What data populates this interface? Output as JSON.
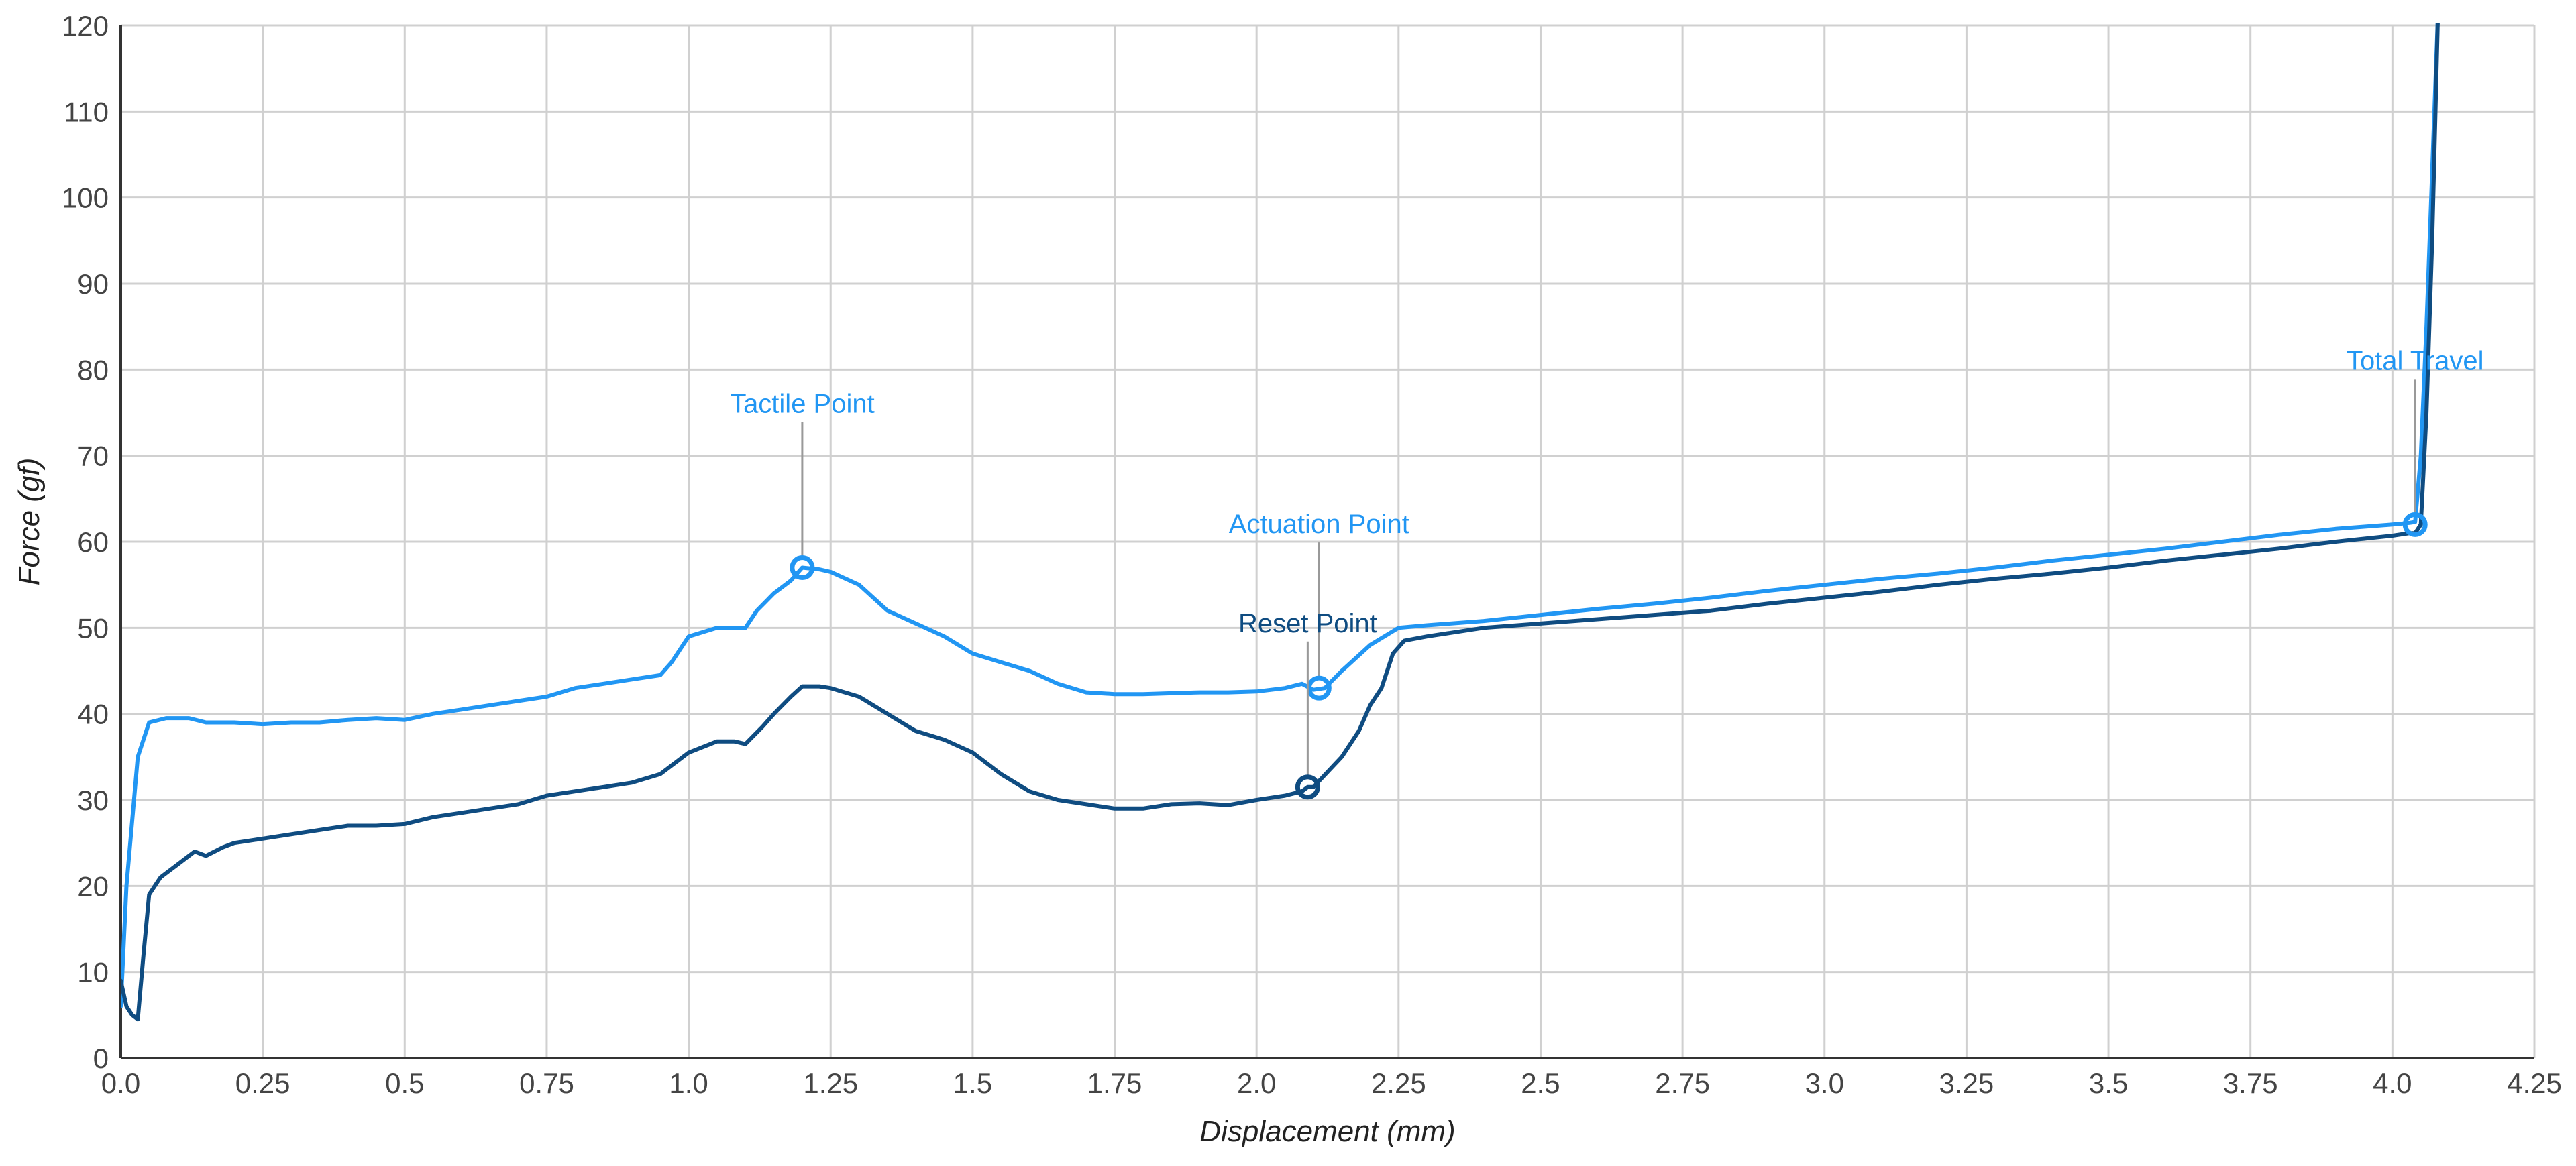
{
  "chart_data": {
    "type": "line",
    "title": "",
    "xlabel": "Displacement (mm)",
    "ylabel": "Force (gf)",
    "xlim": [
      0,
      4.25
    ],
    "ylim": [
      0,
      120
    ],
    "x_ticks": [
      "0.0",
      "0.25",
      "0.5",
      "0.75",
      "1.0",
      "1.25",
      "1.5",
      "1.75",
      "2.0",
      "2.25",
      "2.5",
      "2.75",
      "3.0",
      "3.25",
      "3.5",
      "3.75",
      "4.0",
      "4.25"
    ],
    "y_ticks": [
      "0",
      "10",
      "20",
      "30",
      "40",
      "50",
      "60",
      "70",
      "80",
      "90",
      "100",
      "110",
      "120"
    ],
    "grid": true,
    "legend": "none",
    "colors": {
      "downstroke": "#2196f3",
      "upstroke": "#0f4c81",
      "grid": "#d0d0d0",
      "axis": "#333333",
      "leader": "#999999"
    },
    "series": [
      {
        "color": "#2196f3",
        "x": [
          0.0,
          0.01,
          0.03,
          0.05,
          0.08,
          0.12,
          0.15,
          0.2,
          0.25,
          0.3,
          0.35,
          0.4,
          0.45,
          0.5,
          0.55,
          0.6,
          0.65,
          0.7,
          0.75,
          0.8,
          0.85,
          0.9,
          0.95,
          0.97,
          1.0,
          1.05,
          1.1,
          1.12,
          1.15,
          1.18,
          1.2,
          1.23,
          1.25,
          1.3,
          1.35,
          1.4,
          1.45,
          1.5,
          1.55,
          1.6,
          1.65,
          1.7,
          1.75,
          1.8,
          1.85,
          1.9,
          1.95,
          2.0,
          2.05,
          2.08,
          2.1,
          2.12,
          2.15,
          2.2,
          2.25,
          2.3,
          2.4,
          2.5,
          2.6,
          2.7,
          2.8,
          2.9,
          3.0,
          3.1,
          3.2,
          3.3,
          3.4,
          3.5,
          3.6,
          3.7,
          3.8,
          3.9,
          4.0,
          4.03,
          4.04,
          4.05,
          4.06,
          4.07,
          4.08
        ],
        "values": [
          6,
          20,
          35,
          39,
          39.5,
          39.5,
          39,
          39,
          38.8,
          39,
          39,
          39.3,
          39.5,
          39.3,
          40,
          40.5,
          41,
          41.5,
          42,
          43,
          43.5,
          44,
          44.5,
          46,
          49,
          50,
          50,
          52,
          54,
          55.5,
          57,
          56.8,
          56.5,
          55,
          52,
          50.5,
          49,
          47,
          46,
          45,
          43.5,
          42.5,
          42.3,
          42.3,
          42.4,
          42.5,
          42.5,
          42.6,
          43,
          43.5,
          42.8,
          43,
          45,
          48,
          50,
          50.3,
          50.8,
          51.5,
          52.2,
          52.8,
          53.5,
          54.3,
          55,
          55.7,
          56.3,
          57,
          57.8,
          58.5,
          59.2,
          60,
          60.8,
          61.5,
          62,
          62.2,
          62.3,
          70,
          85,
          103,
          121
        ]
      },
      {
        "color": "#0f4c81",
        "x": [
          0.0,
          0.01,
          0.02,
          0.03,
          0.04,
          0.05,
          0.07,
          0.1,
          0.13,
          0.15,
          0.18,
          0.2,
          0.25,
          0.3,
          0.35,
          0.4,
          0.45,
          0.5,
          0.55,
          0.6,
          0.65,
          0.7,
          0.75,
          0.8,
          0.85,
          0.9,
          0.95,
          1.0,
          1.05,
          1.08,
          1.1,
          1.13,
          1.15,
          1.18,
          1.2,
          1.23,
          1.25,
          1.3,
          1.35,
          1.4,
          1.45,
          1.5,
          1.55,
          1.6,
          1.65,
          1.7,
          1.75,
          1.8,
          1.85,
          1.9,
          1.95,
          2.0,
          2.05,
          2.08,
          2.09,
          2.1,
          2.15,
          2.18,
          2.2,
          2.22,
          2.24,
          2.26,
          2.3,
          2.4,
          2.5,
          2.6,
          2.7,
          2.8,
          2.9,
          3.0,
          3.1,
          3.2,
          3.3,
          3.4,
          3.5,
          3.6,
          3.7,
          3.8,
          3.9,
          4.0,
          4.03,
          4.04,
          4.05,
          4.06,
          4.07,
          4.08
        ],
        "values": [
          9,
          6,
          5,
          4.5,
          12,
          19,
          21,
          22.5,
          24,
          23.5,
          24.5,
          25,
          25.5,
          26,
          26.5,
          27,
          27,
          27.2,
          28,
          28.5,
          29,
          29.5,
          30.5,
          31,
          31.5,
          32,
          33,
          35.5,
          36.8,
          36.8,
          36.5,
          38.5,
          40,
          42,
          43.2,
          43.2,
          43,
          42,
          40,
          38,
          37,
          35.5,
          33,
          31,
          30,
          29.5,
          29,
          29,
          29.5,
          29.6,
          29.4,
          30,
          30.5,
          31,
          31.5,
          31.5,
          35,
          38,
          41,
          43,
          47,
          48.5,
          49,
          50,
          50.5,
          51,
          51.5,
          52,
          52.8,
          53.5,
          54.2,
          55,
          55.7,
          56.3,
          57,
          57.8,
          58.5,
          59.2,
          60,
          60.7,
          61,
          61,
          62,
          75,
          95,
          121
        ]
      }
    ],
    "annotations": [
      {
        "label": "Tactile Point",
        "x": 1.2,
        "y": 57,
        "label_y": 75,
        "color": "#2196f3"
      },
      {
        "label": "Actuation Point",
        "x": 2.11,
        "y": 43,
        "label_y": 61,
        "color": "#2196f3"
      },
      {
        "label": "Reset Point",
        "x": 2.09,
        "y": 31.5,
        "label_y": 49.5,
        "color": "#0f4c81"
      },
      {
        "label": "Total Travel",
        "x": 4.04,
        "y": 62,
        "label_y": 80,
        "color": "#2196f3"
      }
    ]
  }
}
